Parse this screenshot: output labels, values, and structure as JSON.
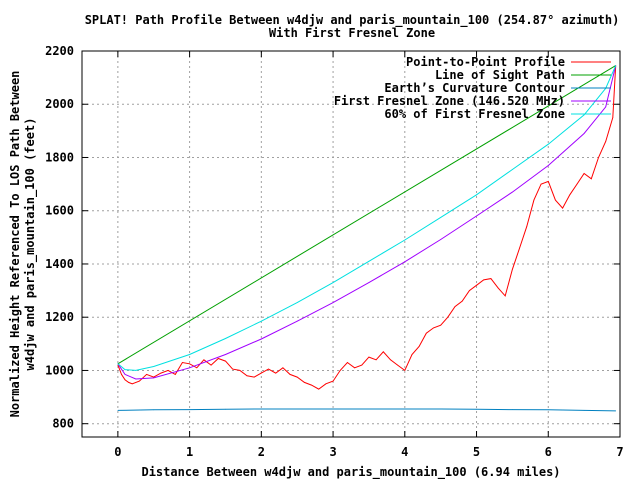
{
  "chart_data": {
    "type": "line",
    "title": "SPLAT! Path Profile Between w4djw and paris_mountain_100 (254.87° azimuth)",
    "subtitle": "With First Fresnel Zone",
    "xlabel": "Distance Between w4djw and paris_mountain_100 (6.94 miles)",
    "ylabel_line1": "Normalized Height Referenced To LOS Path Between",
    "ylabel_line2": "w4djw and paris_mountain_100 (feet)",
    "xlim": [
      -0.5,
      7
    ],
    "ylim": [
      750,
      2200
    ],
    "x_ticks": [
      0,
      1,
      2,
      3,
      4,
      5,
      6,
      7
    ],
    "y_ticks": [
      800,
      1000,
      1200,
      1400,
      1600,
      1800,
      2000,
      2200
    ],
    "grid": true,
    "legend_position": "top-right",
    "series": [
      {
        "name": "Point-to-Point Profile",
        "color": "#ff0000",
        "x": [
          0,
          0.05,
          0.1,
          0.15,
          0.2,
          0.3,
          0.4,
          0.5,
          0.6,
          0.7,
          0.8,
          0.9,
          1.0,
          1.1,
          1.2,
          1.3,
          1.4,
          1.5,
          1.6,
          1.7,
          1.8,
          1.9,
          2.0,
          2.1,
          2.2,
          2.3,
          2.4,
          2.5,
          2.6,
          2.7,
          2.8,
          2.9,
          3.0,
          3.1,
          3.2,
          3.3,
          3.4,
          3.5,
          3.6,
          3.7,
          3.8,
          3.9,
          4.0,
          4.1,
          4.2,
          4.3,
          4.4,
          4.5,
          4.6,
          4.7,
          4.8,
          4.9,
          5.0,
          5.1,
          5.2,
          5.3,
          5.4,
          5.5,
          5.6,
          5.7,
          5.8,
          5.9,
          6.0,
          6.1,
          6.2,
          6.3,
          6.4,
          6.5,
          6.6,
          6.7,
          6.8,
          6.9,
          6.94
        ],
        "values": [
          1020,
          985,
          965,
          955,
          950,
          960,
          985,
          975,
          990,
          1000,
          985,
          1030,
          1025,
          1010,
          1040,
          1020,
          1045,
          1035,
          1005,
          1000,
          980,
          975,
          990,
          1005,
          990,
          1010,
          985,
          975,
          955,
          945,
          930,
          950,
          960,
          1000,
          1030,
          1010,
          1020,
          1050,
          1040,
          1070,
          1040,
          1020,
          1000,
          1060,
          1090,
          1140,
          1160,
          1170,
          1200,
          1240,
          1260,
          1300,
          1320,
          1340,
          1345,
          1310,
          1280,
          1380,
          1460,
          1540,
          1640,
          1700,
          1710,
          1640,
          1610,
          1660,
          1700,
          1740,
          1720,
          1800,
          1860,
          1950,
          2145
        ]
      },
      {
        "name": "Line of Sight Path",
        "color": "#00a000",
        "x": [
          0,
          6.94
        ],
        "values": [
          1025,
          2145
        ]
      },
      {
        "name": "Earth’s Curvature Contour",
        "color": "#0080c0",
        "x": [
          0,
          0.5,
          1,
          1.5,
          2,
          2.5,
          3,
          3.5,
          4,
          4.5,
          5,
          5.5,
          6,
          6.5,
          6.94
        ],
        "values": [
          850,
          852,
          853,
          854,
          855,
          855,
          855,
          855,
          855,
          855,
          854,
          853,
          852,
          850,
          848
        ]
      },
      {
        "name": "First Fresnel Zone (146.520 MHz)",
        "color": "#a000ff",
        "x": [
          0,
          0.1,
          0.25,
          0.5,
          1,
          1.5,
          2,
          2.5,
          3,
          3.5,
          4,
          4.5,
          5,
          5.5,
          6,
          6.5,
          6.8,
          6.94
        ],
        "values": [
          1025,
          985,
          968,
          972,
          1010,
          1060,
          1118,
          1185,
          1255,
          1330,
          1408,
          1492,
          1580,
          1670,
          1770,
          1890,
          1990,
          2145
        ]
      },
      {
        "name": "60% of First Fresnel Zone",
        "color": "#00e0e0",
        "x": [
          0,
          0.1,
          0.25,
          0.5,
          1,
          1.5,
          2,
          2.5,
          3,
          3.5,
          4,
          4.5,
          5,
          5.5,
          6,
          6.5,
          6.8,
          6.94
        ],
        "values": [
          1025,
          1003,
          1000,
          1015,
          1060,
          1120,
          1185,
          1255,
          1330,
          1410,
          1490,
          1575,
          1660,
          1755,
          1850,
          1960,
          2060,
          2145
        ]
      }
    ]
  }
}
